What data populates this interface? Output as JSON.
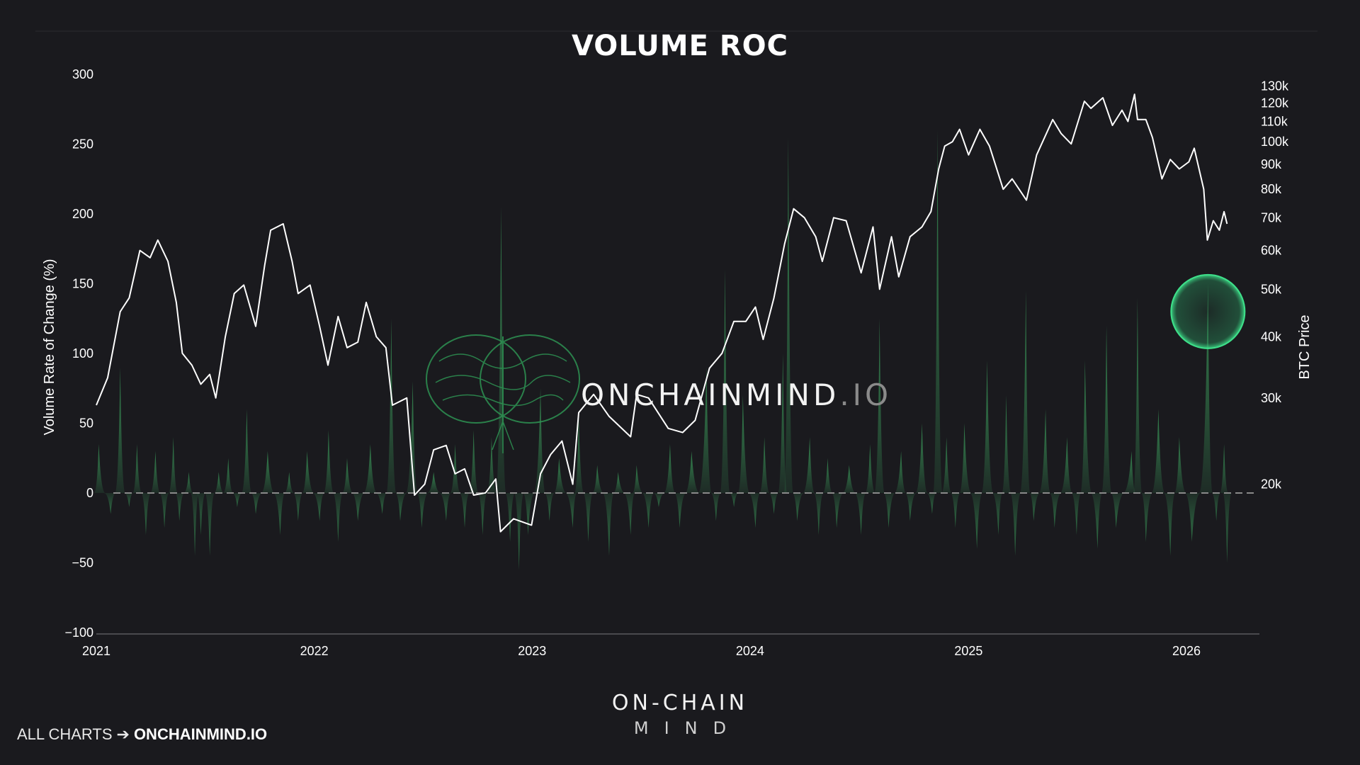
{
  "colors": {
    "background": "#1a1a1e",
    "roc_fill": "#3fae63",
    "price_line": "#ffffff",
    "zero_line": "#8a8a8a",
    "highlight": "#3ee08a"
  },
  "icons": [
    "brain-icon",
    "highlight-circle-icon"
  ],
  "watermark": {
    "text_main": "ONCHAINMIND",
    "text_suffix": ".IO"
  },
  "brand": {
    "top": "ON-CHAIN",
    "bottom": "MIND"
  },
  "footer": {
    "prefix": "ALL CHARTS",
    "arrow": "➔",
    "url": "ONCHAINMIND.IO"
  },
  "chart_data": {
    "type": "area",
    "title": "VOLUME ROC",
    "ylabel": "Volume Rate of Change (%)",
    "y2label": "BTC Price",
    "ylim": [
      -100,
      300
    ],
    "y2_scale": "log",
    "y2lim": [
      15000,
      135000
    ],
    "x_ticks": [
      "2021",
      "2022",
      "2023",
      "2024",
      "2025",
      "2026"
    ],
    "y_ticks": [
      "300",
      "250",
      "200",
      "150",
      "100",
      "50",
      "0",
      "−50",
      "−100"
    ],
    "y2_ticks": [
      {
        "label": "130k",
        "value": 130000
      },
      {
        "label": "120k",
        "value": 120000
      },
      {
        "label": "110k",
        "value": 110000
      },
      {
        "label": "100k",
        "value": 100000
      },
      {
        "label": "90k",
        "value": 90000
      },
      {
        "label": "80k",
        "value": 80000
      },
      {
        "label": "70k",
        "value": 70000
      },
      {
        "label": "60k",
        "value": 60000
      },
      {
        "label": "50k",
        "value": 50000
      },
      {
        "label": "40k",
        "value": 40000
      },
      {
        "label": "30k",
        "value": 30000
      },
      {
        "label": "20k",
        "value": 20000
      }
    ],
    "grid": false,
    "series": [
      {
        "name": "Volume ROC",
        "axis": "left",
        "points": [
          [
            "2021-01-05",
            35
          ],
          [
            "2021-01-25",
            -15
          ],
          [
            "2021-02-10",
            90
          ],
          [
            "2021-02-25",
            -10
          ],
          [
            "2021-03-10",
            35
          ],
          [
            "2021-03-25",
            -30
          ],
          [
            "2021-04-10",
            30
          ],
          [
            "2021-04-25",
            -25
          ],
          [
            "2021-05-10",
            40
          ],
          [
            "2021-05-20",
            -20
          ],
          [
            "2021-06-05",
            15
          ],
          [
            "2021-06-15",
            -45
          ],
          [
            "2021-06-25",
            -30
          ],
          [
            "2021-07-10",
            -45
          ],
          [
            "2021-07-25",
            15
          ],
          [
            "2021-08-10",
            25
          ],
          [
            "2021-08-25",
            -10
          ],
          [
            "2021-09-10",
            60
          ],
          [
            "2021-09-25",
            -15
          ],
          [
            "2021-10-15",
            30
          ],
          [
            "2021-11-05",
            -30
          ],
          [
            "2021-11-20",
            15
          ],
          [
            "2021-12-05",
            -20
          ],
          [
            "2021-12-20",
            30
          ],
          [
            "2022-01-10",
            -20
          ],
          [
            "2022-01-25",
            45
          ],
          [
            "2022-02-10",
            -35
          ],
          [
            "2022-02-25",
            25
          ],
          [
            "2022-03-15",
            -20
          ],
          [
            "2022-04-05",
            35
          ],
          [
            "2022-04-25",
            -15
          ],
          [
            "2022-05-10",
            125
          ],
          [
            "2022-05-25",
            -20
          ],
          [
            "2022-06-15",
            80
          ],
          [
            "2022-06-30",
            -25
          ],
          [
            "2022-07-20",
            15
          ],
          [
            "2022-08-10",
            -20
          ],
          [
            "2022-08-25",
            35
          ],
          [
            "2022-09-10",
            -25
          ],
          [
            "2022-09-25",
            45
          ],
          [
            "2022-10-10",
            -30
          ],
          [
            "2022-10-25",
            40
          ],
          [
            "2022-11-10",
            205
          ],
          [
            "2022-11-25",
            -35
          ],
          [
            "2022-12-10",
            -55
          ],
          [
            "2022-12-25",
            -30
          ],
          [
            "2023-01-15",
            75
          ],
          [
            "2023-01-30",
            -20
          ],
          [
            "2023-02-15",
            25
          ],
          [
            "2023-03-10",
            -25
          ],
          [
            "2023-03-20",
            55
          ],
          [
            "2023-04-05",
            -35
          ],
          [
            "2023-04-20",
            20
          ],
          [
            "2023-05-10",
            -45
          ],
          [
            "2023-05-25",
            15
          ],
          [
            "2023-06-15",
            -30
          ],
          [
            "2023-06-25",
            20
          ],
          [
            "2023-07-15",
            -25
          ],
          [
            "2023-08-01",
            -10
          ],
          [
            "2023-08-20",
            35
          ],
          [
            "2023-09-05",
            -25
          ],
          [
            "2023-09-25",
            30
          ],
          [
            "2023-10-20",
            90
          ],
          [
            "2023-11-05",
            -20
          ],
          [
            "2023-11-20",
            160
          ],
          [
            "2023-12-05",
            -10
          ],
          [
            "2023-12-20",
            70
          ],
          [
            "2024-01-10",
            -25
          ],
          [
            "2024-01-25",
            40
          ],
          [
            "2024-02-10",
            -15
          ],
          [
            "2024-02-25",
            100
          ],
          [
            "2024-03-05",
            255
          ],
          [
            "2024-03-20",
            -20
          ],
          [
            "2024-04-10",
            40
          ],
          [
            "2024-04-25",
            -30
          ],
          [
            "2024-05-10",
            25
          ],
          [
            "2024-05-25",
            -25
          ],
          [
            "2024-06-15",
            20
          ],
          [
            "2024-07-05",
            -30
          ],
          [
            "2024-07-20",
            35
          ],
          [
            "2024-08-05",
            125
          ],
          [
            "2024-08-20",
            -25
          ],
          [
            "2024-09-10",
            30
          ],
          [
            "2024-09-25",
            -20
          ],
          [
            "2024-10-15",
            50
          ],
          [
            "2024-11-01",
            -15
          ],
          [
            "2024-11-10",
            260
          ],
          [
            "2024-11-25",
            40
          ],
          [
            "2024-12-10",
            -25
          ],
          [
            "2024-12-25",
            50
          ],
          [
            "2025-01-15",
            -40
          ],
          [
            "2025-02-01",
            95
          ],
          [
            "2025-02-20",
            -30
          ],
          [
            "2025-03-05",
            70
          ],
          [
            "2025-03-20",
            -45
          ],
          [
            "2025-04-07",
            145
          ],
          [
            "2025-04-20",
            -20
          ],
          [
            "2025-05-10",
            60
          ],
          [
            "2025-05-25",
            -25
          ],
          [
            "2025-06-15",
            40
          ],
          [
            "2025-07-01",
            -30
          ],
          [
            "2025-07-15",
            95
          ],
          [
            "2025-08-05",
            -40
          ],
          [
            "2025-08-20",
            120
          ],
          [
            "2025-09-05",
            -25
          ],
          [
            "2025-10-01",
            30
          ],
          [
            "2025-10-11",
            140
          ],
          [
            "2025-10-25",
            -35
          ],
          [
            "2025-11-15",
            60
          ],
          [
            "2025-12-05",
            -45
          ],
          [
            "2025-12-20",
            40
          ],
          [
            "2026-01-10",
            -35
          ],
          [
            "2026-02-06",
            150
          ],
          [
            "2026-02-20",
            -20
          ],
          [
            "2026-03-05",
            35
          ],
          [
            "2026-03-10",
            -50
          ]
        ]
      },
      {
        "name": "BTC Price",
        "axis": "right",
        "points": [
          [
            "2021-01-01",
            29000
          ],
          [
            "2021-01-20",
            33000
          ],
          [
            "2021-02-10",
            45000
          ],
          [
            "2021-02-25",
            48000
          ],
          [
            "2021-03-15",
            60000
          ],
          [
            "2021-04-01",
            58000
          ],
          [
            "2021-04-14",
            63000
          ],
          [
            "2021-05-01",
            57000
          ],
          [
            "2021-05-15",
            47000
          ],
          [
            "2021-05-25",
            37000
          ],
          [
            "2021-06-10",
            35000
          ],
          [
            "2021-06-25",
            32000
          ],
          [
            "2021-07-10",
            33500
          ],
          [
            "2021-07-20",
            30000
          ],
          [
            "2021-08-05",
            40000
          ],
          [
            "2021-08-20",
            49000
          ],
          [
            "2021-09-05",
            51000
          ],
          [
            "2021-09-25",
            42000
          ],
          [
            "2021-10-10",
            56000
          ],
          [
            "2021-10-20",
            66000
          ],
          [
            "2021-11-10",
            68000
          ],
          [
            "2021-11-25",
            57000
          ],
          [
            "2021-12-05",
            49000
          ],
          [
            "2021-12-25",
            51000
          ],
          [
            "2022-01-10",
            42000
          ],
          [
            "2022-01-24",
            35000
          ],
          [
            "2022-02-10",
            44000
          ],
          [
            "2022-02-25",
            38000
          ],
          [
            "2022-03-15",
            39000
          ],
          [
            "2022-03-29",
            47000
          ],
          [
            "2022-04-15",
            40000
          ],
          [
            "2022-05-01",
            38000
          ],
          [
            "2022-05-12",
            29000
          ],
          [
            "2022-06-05",
            30000
          ],
          [
            "2022-06-18",
            19000
          ],
          [
            "2022-07-05",
            20000
          ],
          [
            "2022-07-20",
            23500
          ],
          [
            "2022-08-10",
            24000
          ],
          [
            "2022-08-25",
            21000
          ],
          [
            "2022-09-10",
            21500
          ],
          [
            "2022-09-25",
            19000
          ],
          [
            "2022-10-15",
            19200
          ],
          [
            "2022-11-01",
            20500
          ],
          [
            "2022-11-09",
            16000
          ],
          [
            "2022-12-01",
            17000
          ],
          [
            "2022-12-31",
            16500
          ],
          [
            "2023-01-15",
            21000
          ],
          [
            "2023-02-01",
            23000
          ],
          [
            "2023-02-20",
            24500
          ],
          [
            "2023-03-10",
            20000
          ],
          [
            "2023-03-20",
            28000
          ],
          [
            "2023-04-14",
            30500
          ],
          [
            "2023-05-10",
            27500
          ],
          [
            "2023-06-15",
            25000
          ],
          [
            "2023-06-25",
            30500
          ],
          [
            "2023-07-15",
            30000
          ],
          [
            "2023-08-17",
            26000
          ],
          [
            "2023-09-10",
            25500
          ],
          [
            "2023-10-01",
            27000
          ],
          [
            "2023-10-25",
            34500
          ],
          [
            "2023-11-15",
            37000
          ],
          [
            "2023-12-05",
            43000
          ],
          [
            "2023-12-25",
            43000
          ],
          [
            "2024-01-10",
            46000
          ],
          [
            "2024-01-23",
            39500
          ],
          [
            "2024-02-10",
            48000
          ],
          [
            "2024-02-28",
            62000
          ],
          [
            "2024-03-14",
            73000
          ],
          [
            "2024-04-01",
            70000
          ],
          [
            "2024-04-20",
            64000
          ],
          [
            "2024-05-01",
            57000
          ],
          [
            "2024-05-20",
            70000
          ],
          [
            "2024-06-10",
            69000
          ],
          [
            "2024-07-05",
            54000
          ],
          [
            "2024-07-25",
            67000
          ],
          [
            "2024-08-05",
            50000
          ],
          [
            "2024-08-25",
            64000
          ],
          [
            "2024-09-06",
            53000
          ],
          [
            "2024-09-25",
            64000
          ],
          [
            "2024-10-15",
            67000
          ],
          [
            "2024-10-30",
            72000
          ],
          [
            "2024-11-12",
            88000
          ],
          [
            "2024-11-22",
            98000
          ],
          [
            "2024-12-05",
            100000
          ],
          [
            "2024-12-17",
            106000
          ],
          [
            "2025-01-01",
            94000
          ],
          [
            "2025-01-20",
            106000
          ],
          [
            "2025-02-05",
            98000
          ],
          [
            "2025-02-28",
            80000
          ],
          [
            "2025-03-15",
            84000
          ],
          [
            "2025-04-08",
            76000
          ],
          [
            "2025-04-25",
            94000
          ],
          [
            "2025-05-22",
            111000
          ],
          [
            "2025-06-05",
            104000
          ],
          [
            "2025-06-22",
            99000
          ],
          [
            "2025-07-14",
            121000
          ],
          [
            "2025-07-25",
            117000
          ],
          [
            "2025-08-14",
            123000
          ],
          [
            "2025-08-30",
            108000
          ],
          [
            "2025-09-15",
            116000
          ],
          [
            "2025-09-25",
            110000
          ],
          [
            "2025-10-06",
            125000
          ],
          [
            "2025-10-11",
            111000
          ],
          [
            "2025-10-25",
            111000
          ],
          [
            "2025-11-05",
            102000
          ],
          [
            "2025-11-21",
            84000
          ],
          [
            "2025-12-05",
            92000
          ],
          [
            "2025-12-20",
            88000
          ],
          [
            "2026-01-05",
            91000
          ],
          [
            "2026-01-14",
            97000
          ],
          [
            "2026-01-30",
            80000
          ],
          [
            "2026-02-05",
            63000
          ],
          [
            "2026-02-15",
            69000
          ],
          [
            "2026-02-25",
            66000
          ],
          [
            "2026-03-05",
            72000
          ],
          [
            "2026-03-10",
            68000
          ]
        ]
      }
    ]
  }
}
